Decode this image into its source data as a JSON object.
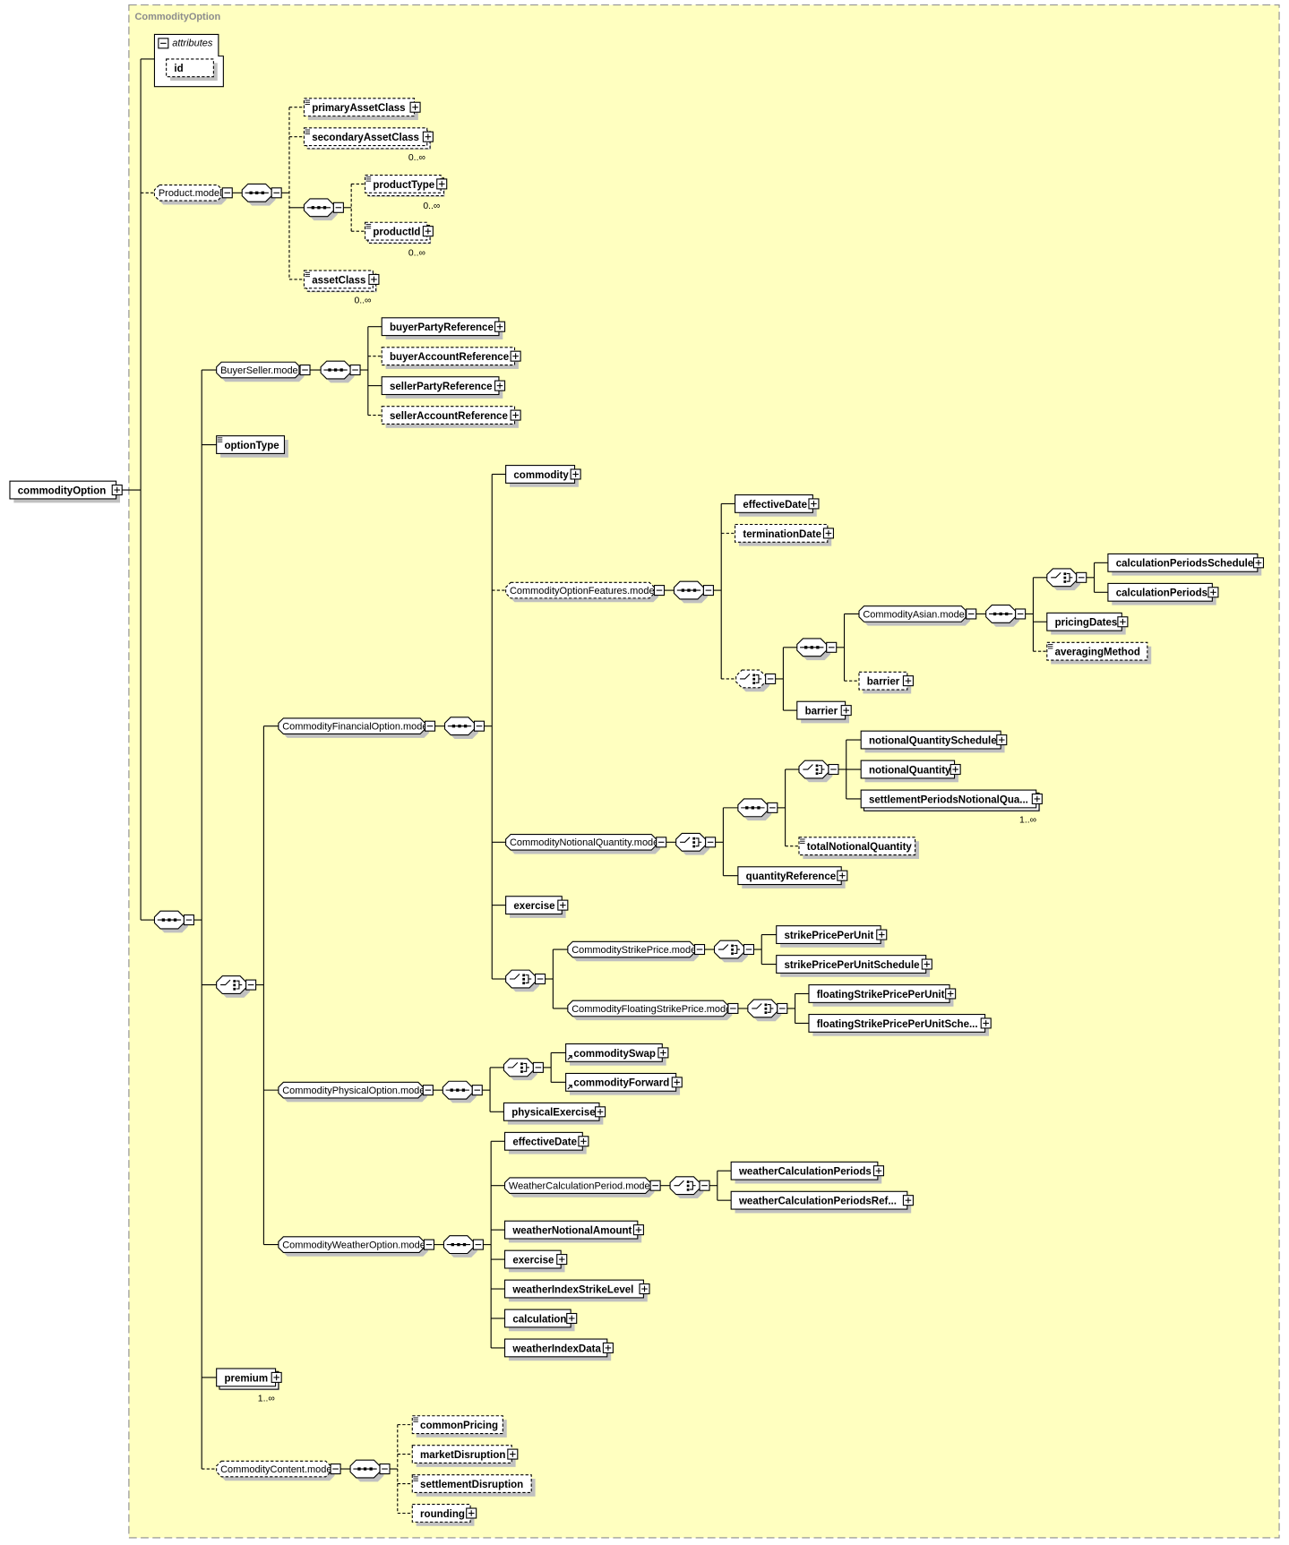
{
  "diagram": {
    "complex_type": "CommodityOption",
    "attributes_label": "attributes",
    "background_color": "#ffffc0",
    "line_color": "#000000"
  },
  "nodes": {
    "commodityOption": "commodityOption",
    "id": "id",
    "productModel": "Product.model",
    "primaryAssetClass": "primaryAssetClass",
    "secondaryAssetClass": "secondaryAssetClass",
    "productType": "productType",
    "productId": "productId",
    "assetClass": "assetClass",
    "buyerSellerModel": "BuyerSeller.model",
    "buyerPartyReference": "buyerPartyReference",
    "buyerAccountReference": "buyerAccountReference",
    "sellerPartyReference": "sellerPartyReference",
    "sellerAccountReference": "sellerAccountReference",
    "optionType": "optionType",
    "financialOptionModel": "CommodityFinancialOption.model",
    "commodity": "commodity",
    "optionFeaturesModel": "CommodityOptionFeatures.model",
    "effectiveDate1": "effectiveDate",
    "terminationDate": "terminationDate",
    "asianModel": "CommodityAsian.model",
    "calculationPeriodsSchedule": "calculationPeriodsSchedule",
    "calculationPeriods": "calculationPeriods",
    "pricingDates": "pricingDates",
    "averagingMethod": "averagingMethod",
    "barrier1": "barrier",
    "barrier2": "barrier",
    "notionalQuantityModel": "CommodityNotionalQuantity.model",
    "notionalQuantitySchedule": "notionalQuantitySchedule",
    "notionalQuantity": "notionalQuantity",
    "settlementPeriodsNotionalQuantity": "settlementPeriodsNotionalQua...",
    "totalNotionalQuantity": "totalNotionalQuantity",
    "quantityReference": "quantityReference",
    "exercise1": "exercise",
    "strikePriceModel": "CommodityStrikePrice.model",
    "strikePricePerUnit": "strikePricePerUnit",
    "strikePricePerUnitSchedule": "strikePricePerUnitSchedule",
    "floatingStrikePriceModel": "CommodityFloatingStrikePrice.model",
    "floatingStrikePricePerUnit": "floatingStrikePricePerUnit",
    "floatingStrikePricePerUnitSchedule": "floatingStrikePricePerUnitSche...",
    "physicalOptionModel": "CommodityPhysicalOption.model",
    "commoditySwap": "commoditySwap",
    "commodityForward": "commodityForward",
    "physicalExercise": "physicalExercise",
    "weatherOptionModel": "CommodityWeatherOption.model",
    "effectiveDate2": "effectiveDate",
    "weatherCalculationPeriodModel": "WeatherCalculationPeriod.model",
    "weatherCalculationPeriods": "weatherCalculationPeriods",
    "weatherCalculationPeriodsReference": "weatherCalculationPeriodsRef...",
    "weatherNotionalAmount": "weatherNotionalAmount",
    "exercise2": "exercise",
    "weatherIndexStrikeLevel": "weatherIndexStrikeLevel",
    "calculation": "calculation",
    "weatherIndexData": "weatherIndexData",
    "premium": "premium",
    "contentModel": "CommodityContent.model",
    "commonPricing": "commonPricing",
    "marketDisruption": "marketDisruption",
    "settlementDisruption": "settlementDisruption",
    "rounding": "rounding"
  },
  "cardinality": {
    "secondaryAssetClass": "0..∞",
    "productType": "0..∞",
    "productId": "0..∞",
    "assetClass": "0..∞",
    "settlementPeriodsNotionalQuantity": "1..∞",
    "premium": "1..∞"
  }
}
